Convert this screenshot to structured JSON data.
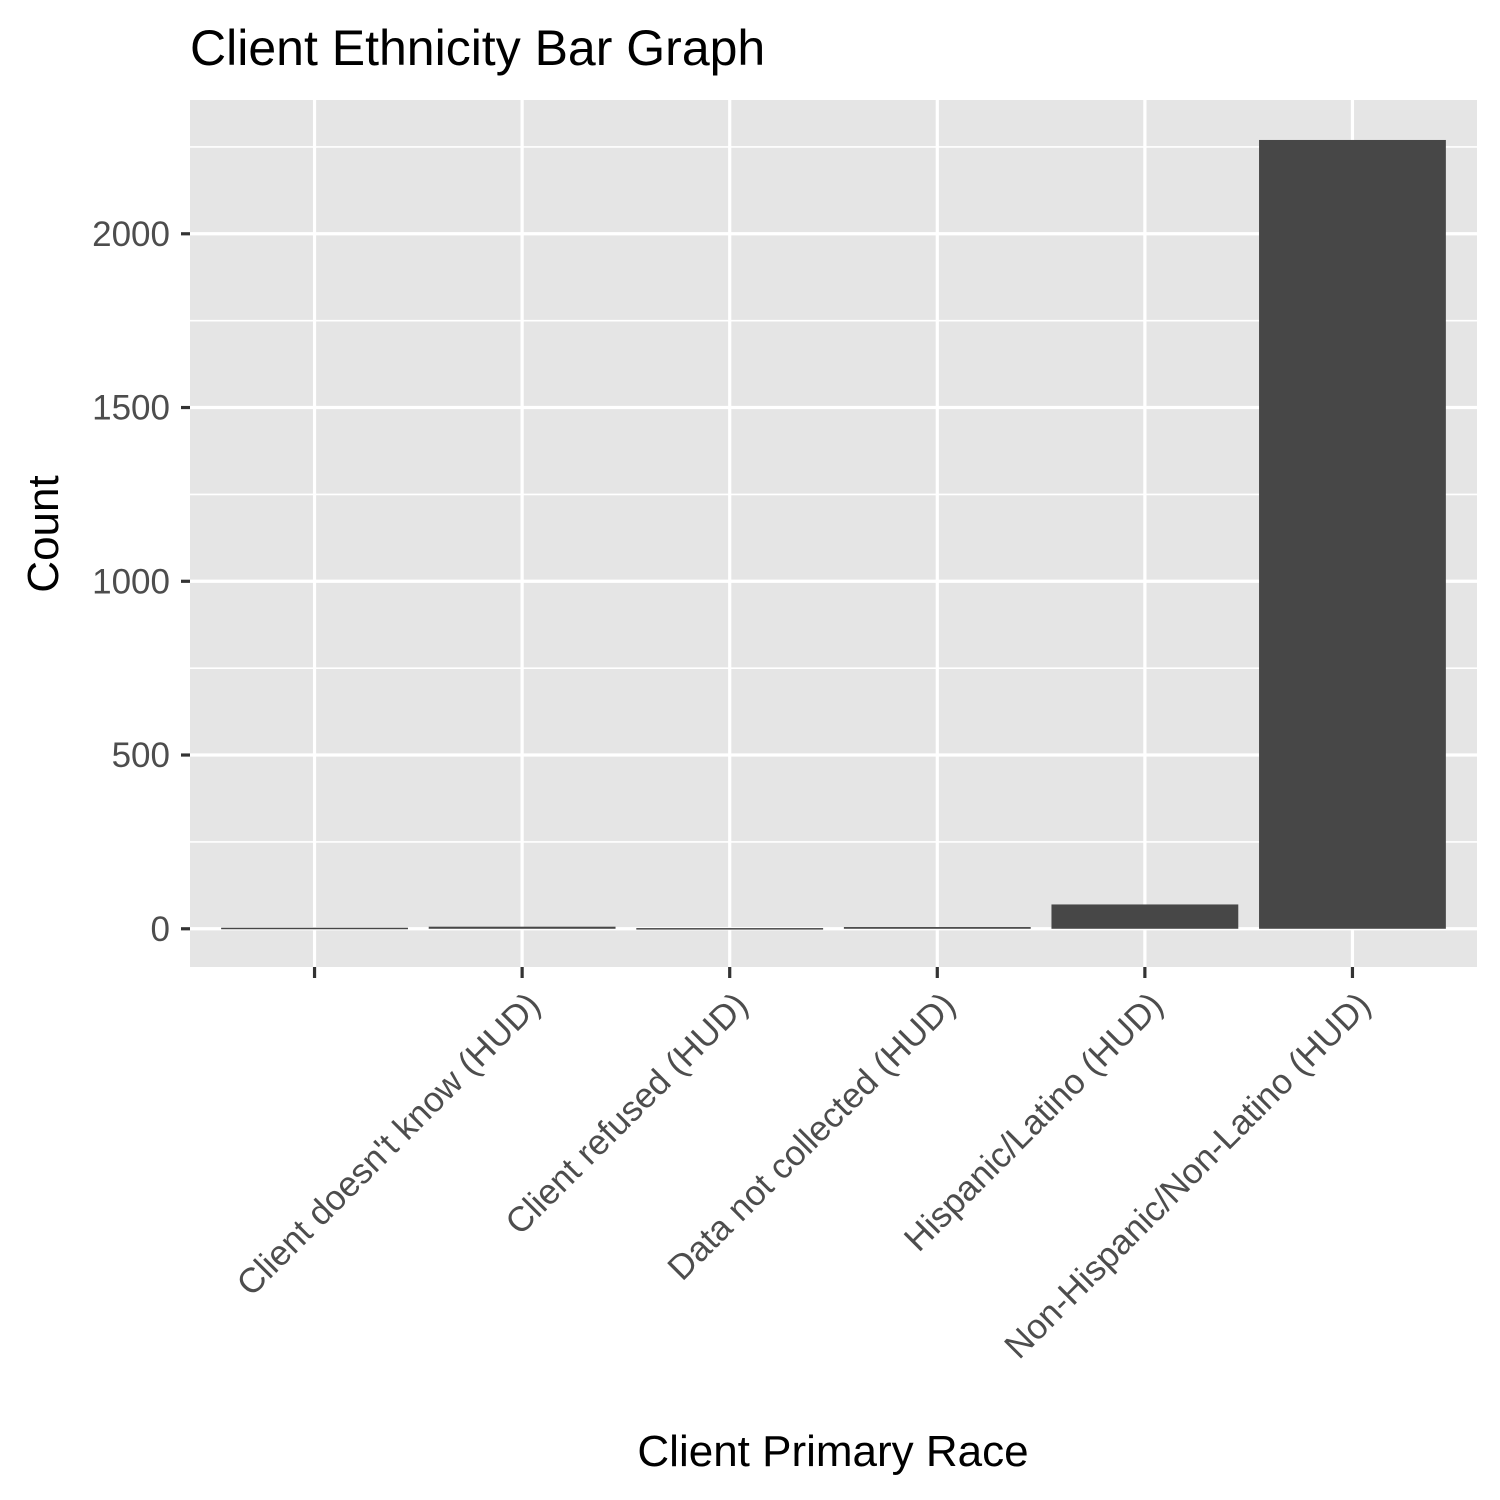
{
  "chart_data": {
    "type": "bar",
    "title": "Client Ethnicity Bar Graph",
    "xlabel": "Client Primary Race",
    "ylabel": "Count",
    "categories": [
      "",
      "Client doesn't know (HUD)",
      "Client refused (HUD)",
      "Data not collected (HUD)",
      "Hispanic/Latino (HUD)",
      "Non-Hispanic/Non-Latino (HUD)"
    ],
    "values": [
      3,
      6,
      2,
      5,
      70,
      2270
    ],
    "ylim": [
      -110,
      2385
    ],
    "y_ticks": [
      0,
      500,
      1000,
      1500,
      2000
    ],
    "y_tick_labels": [
      "0",
      "500",
      "1000",
      "1500",
      "2000"
    ],
    "grid": true,
    "legend": "none",
    "colors": {
      "panel_background": "#e5e5e5",
      "bar_fill": "#474747",
      "gridline": "#ffffff",
      "tick_label": "#4d4d4d"
    }
  }
}
